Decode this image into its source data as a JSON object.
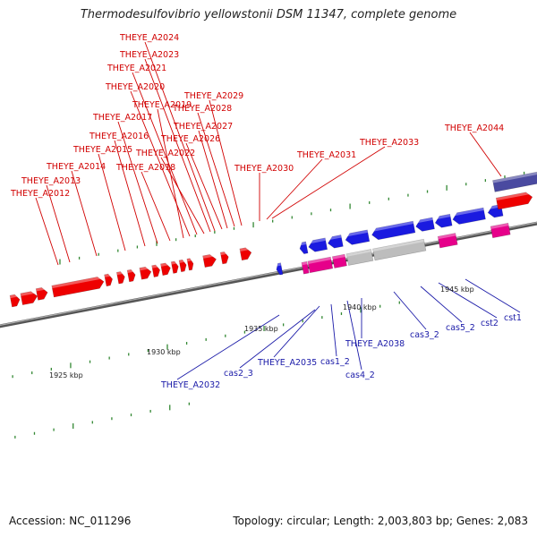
{
  "title": "Thermodesulfovibrio yellowstonii DSM 11347, complete genome",
  "footer": {
    "accession": "Accession: NC_011296",
    "summary": "Topology: circular; Length: 2,003,803 bp; Genes: 2,083"
  },
  "colors": {
    "upper_label": "#d10000",
    "lower_label": "#1a1aa8",
    "red_gene": "#ee0000",
    "blue_gene": "#1a1ae0",
    "magenta_gene": "#e6008a",
    "gray_gene": "#bdbdbd",
    "green_gene": "#33cc33",
    "purple_gene": "#4a4aa0",
    "tick": "#338833"
  },
  "kbp_labels": [
    "1925 kbp",
    "1930 kbp",
    "1935 kbp",
    "1940 kbp",
    "1945 kbp"
  ],
  "upper_labels": [
    "THEYE_A2012",
    "THEYE_A2013",
    "THEYE_A2014",
    "THEYE_A2015",
    "THEYE_A2016",
    "THEYE_A2017",
    "THEYE_A2018",
    "THEYE_A2019",
    "THEYE_A2020",
    "THEYE_A2021",
    "THEYE_A2022",
    "THEYE_A2023",
    "THEYE_A2024",
    "THEYE_A2026",
    "THEYE_A2027",
    "THEYE_A2028",
    "THEYE_A2029",
    "THEYE_A2030",
    "THEYE_A2031",
    "THEYE_A2033",
    "THEYE_A2044"
  ],
  "lower_labels": [
    "THEYE_A2032",
    "cas2_3",
    "THEYE_A2035",
    "cas1_2",
    "cas4_2",
    "THEYE_A2038",
    "cas3_2",
    "cas5_2",
    "cst2",
    "cst1"
  ]
}
